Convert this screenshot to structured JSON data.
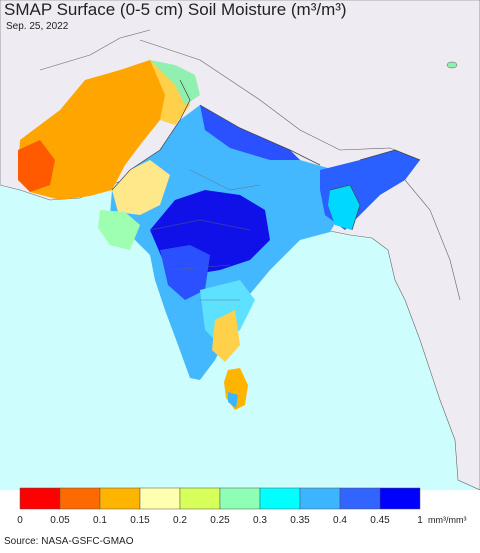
{
  "title": "SMAP Surface (0-5 cm) Soil Moisture (m³/m³)",
  "date": "Sep. 25, 2022",
  "source": "Source: NASA-GSFC-GMAO",
  "colors": {
    "ocean": "#cdfdfd",
    "land_nodata": "#eeebf3",
    "border": "#333333"
  },
  "legend": {
    "ticks": [
      "0",
      "0.05",
      "0.1",
      "0.15",
      "0.2",
      "0.25",
      "0.3",
      "0.35",
      "0.4",
      "0.45",
      "1"
    ],
    "unit": "mm³/mm³",
    "colors": [
      "#ff0000",
      "#ff6a00",
      "#ffb400",
      "#ffffb0",
      "#d6ff5a",
      "#8effb4",
      "#00ffff",
      "#3cb4ff",
      "#3264ff",
      "#0000ff"
    ]
  }
}
